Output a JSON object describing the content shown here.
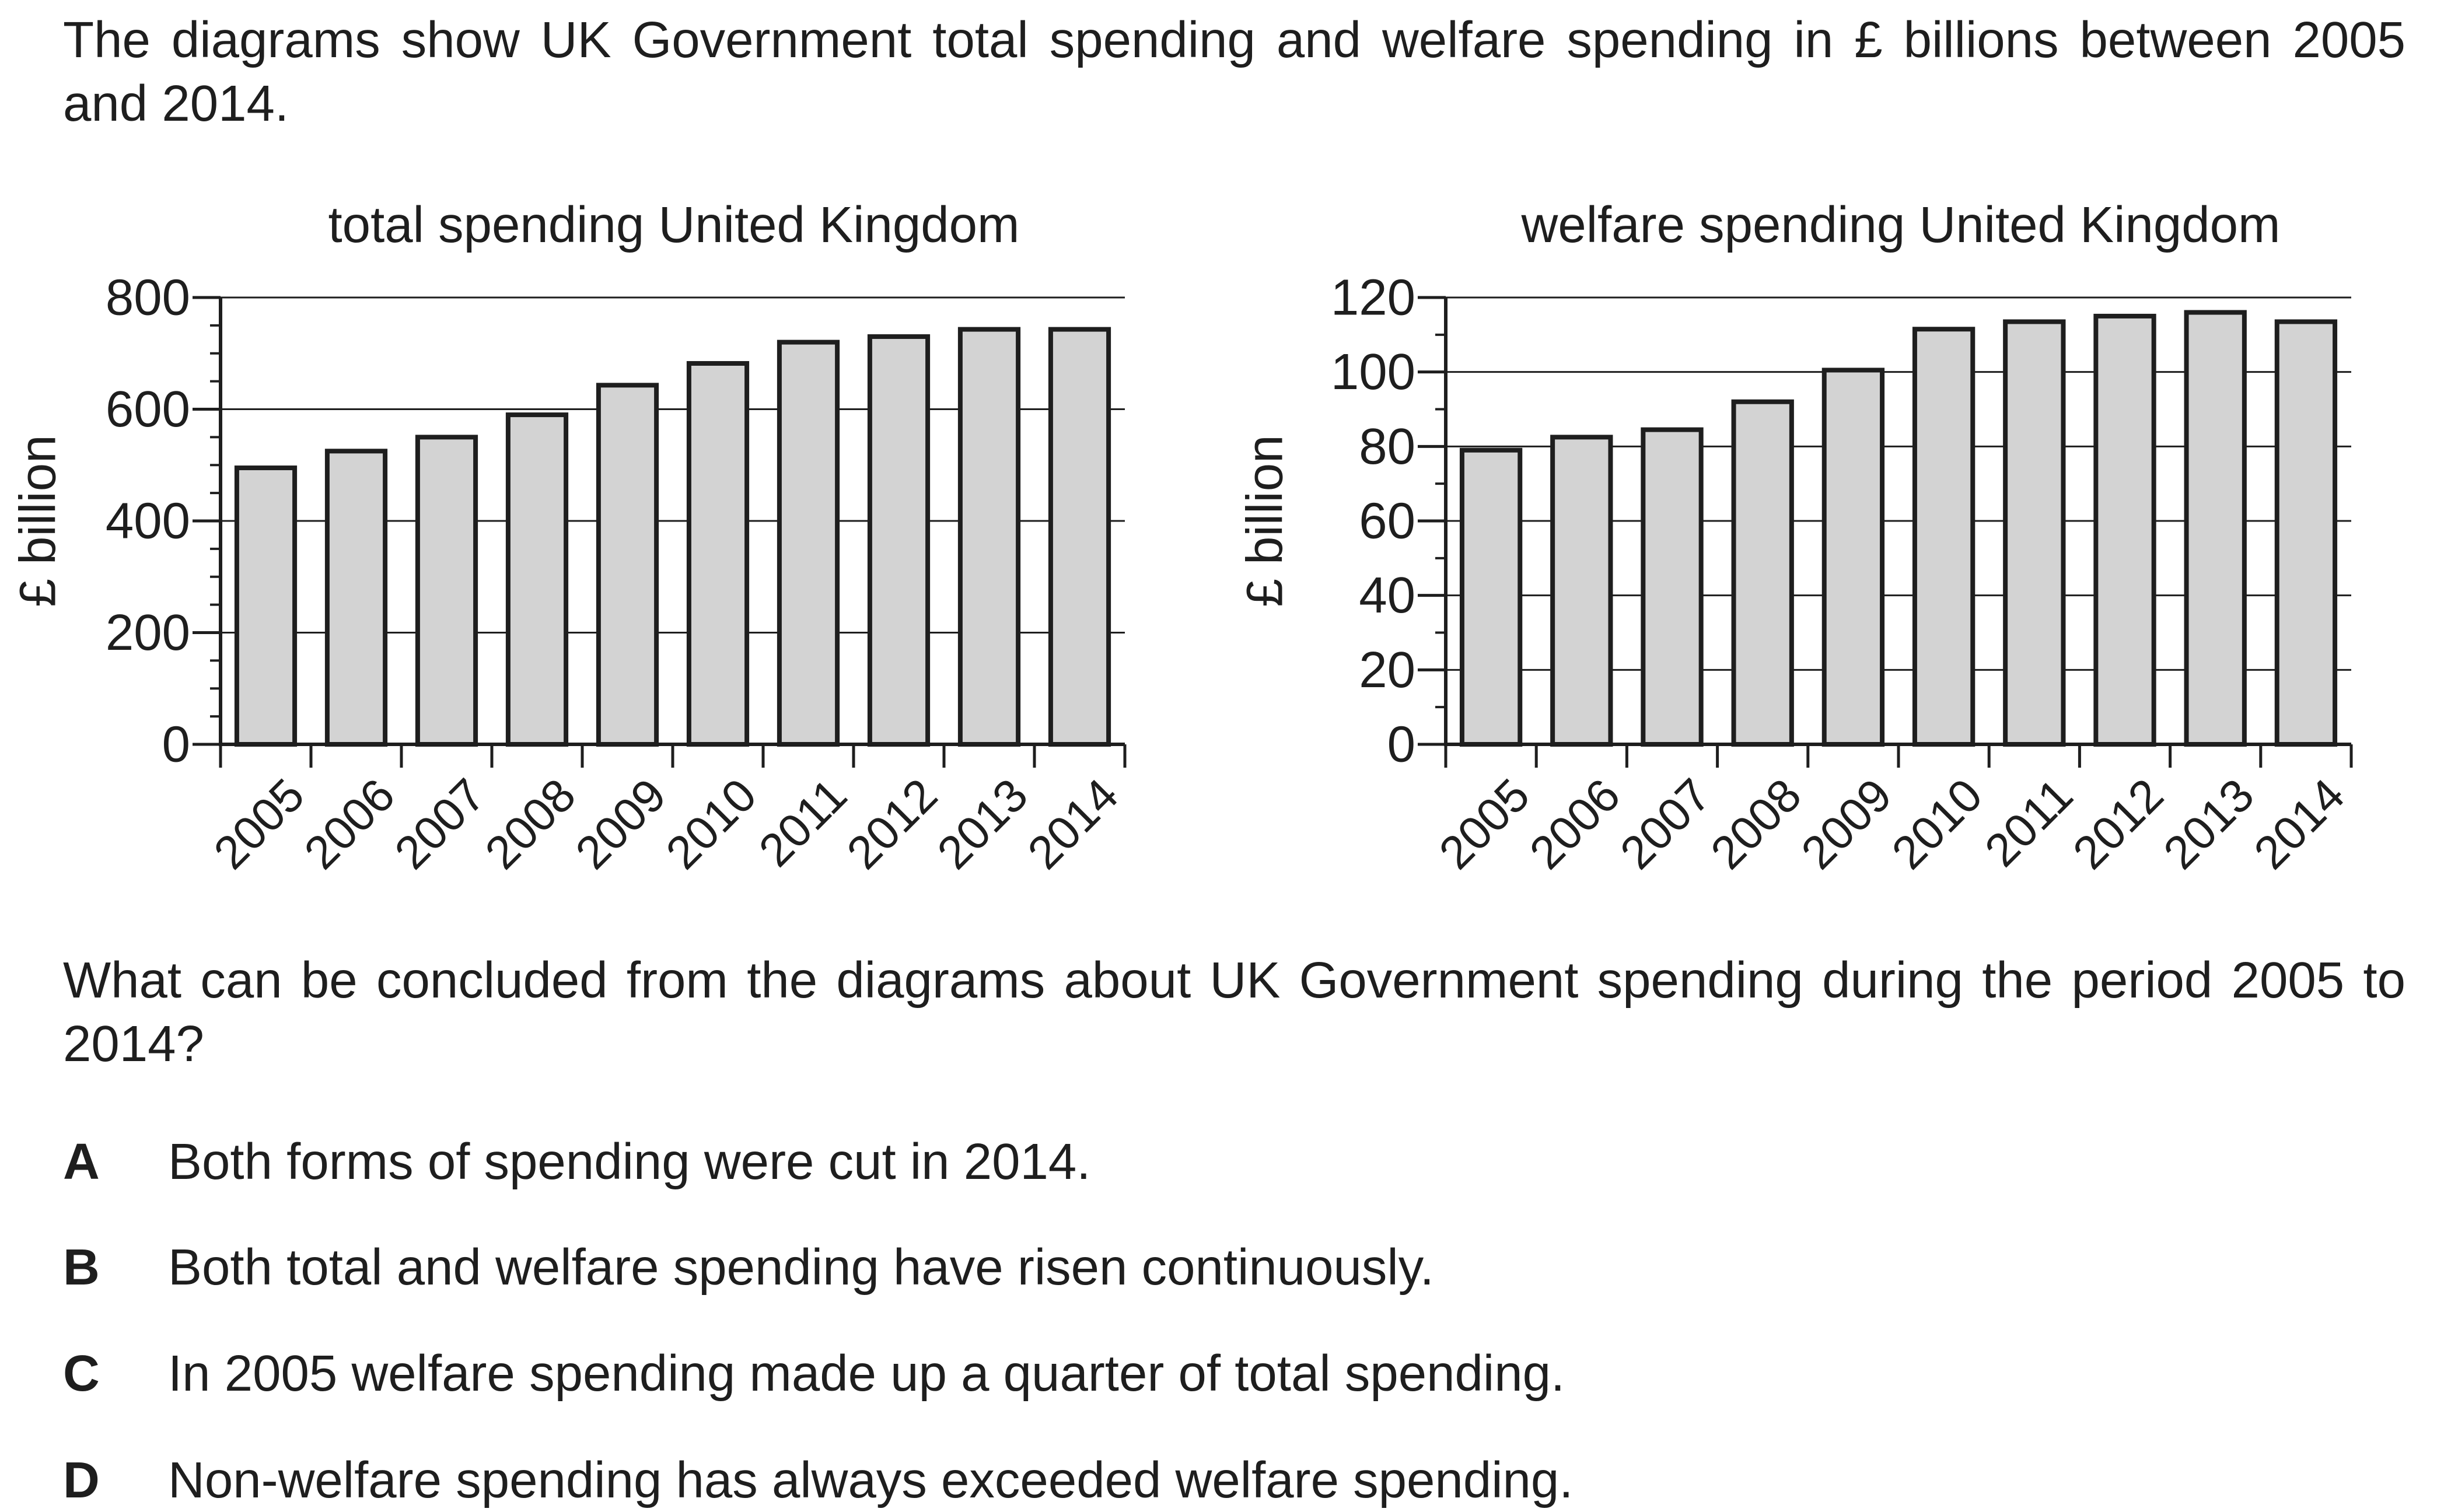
{
  "intro_text": "The diagrams show UK Government total spending and welfare spending in £ billions between 2005 and 2014.",
  "question_text": "What can be concluded from the diagrams about UK Government spending during the period 2005 to 2014?",
  "options": [
    {
      "letter": "A",
      "text": "Both forms of spending were cut in 2014."
    },
    {
      "letter": "B",
      "text": "Both total and welfare spending have risen continuously."
    },
    {
      "letter": "C",
      "text": "In 2005 welfare spending made up a quarter of total spending."
    },
    {
      "letter": "D",
      "text": "Non-welfare spending has always exceeded welfare spending."
    }
  ],
  "chart_data": [
    {
      "type": "bar",
      "title": "total spending United Kingdom",
      "ylabel": "£ billion",
      "xlabel": "",
      "categories": [
        "2005",
        "2006",
        "2007",
        "2008",
        "2009",
        "2010",
        "2011",
        "2012",
        "2013",
        "2014"
      ],
      "values": [
        495,
        525,
        550,
        590,
        643,
        682,
        720,
        730,
        743,
        743
      ],
      "ylim": [
        0,
        800
      ],
      "yticks": [
        0,
        200,
        400,
        600,
        800
      ],
      "minor_step": 50,
      "grid": true,
      "bar_color": "#d3d3d3",
      "edge_color": "#1e1e1e"
    },
    {
      "type": "bar",
      "title": "welfare spending United Kingdom",
      "ylabel": "£ billion",
      "xlabel": "",
      "categories": [
        "2005",
        "2006",
        "2007",
        "2008",
        "2009",
        "2010",
        "2011",
        "2012",
        "2013",
        "2014"
      ],
      "values": [
        79,
        82.5,
        84.5,
        92,
        100.5,
        111.5,
        113.5,
        115,
        116,
        113.5
      ],
      "ylim": [
        0,
        120
      ],
      "yticks": [
        0,
        20,
        40,
        60,
        80,
        100,
        120
      ],
      "minor_step": 10,
      "grid": true,
      "bar_color": "#d3d3d3",
      "edge_color": "#1e1e1e"
    }
  ]
}
